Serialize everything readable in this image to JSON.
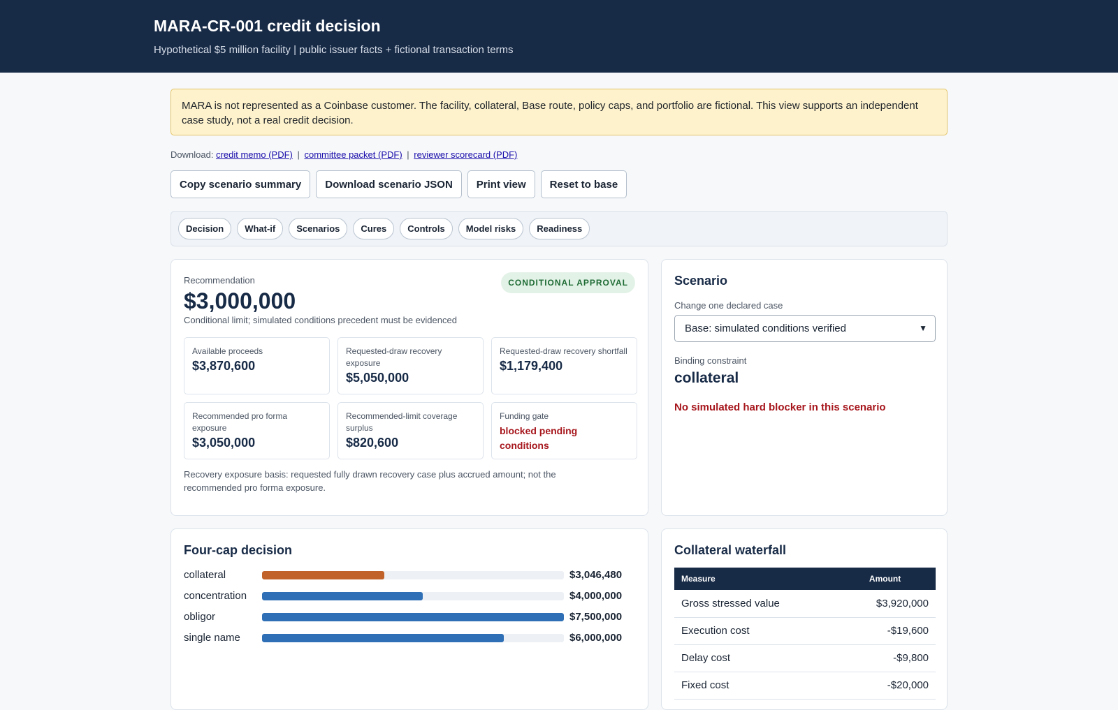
{
  "header": {
    "title": "MARA-CR-001 credit decision",
    "subtitle": "Hypothetical $5 million facility | public issuer facts + fictional transaction terms"
  },
  "notice": "MARA is not represented as a Coinbase customer. The facility, collateral, Base route, policy caps, and portfolio are fictional. This view supports an independent case study, not a real credit decision.",
  "downloads": {
    "label": "Download:",
    "links": [
      "credit memo (PDF)",
      "committee packet (PDF)",
      "reviewer scorecard (PDF)"
    ],
    "separator": "|"
  },
  "actions": [
    "Copy scenario summary",
    "Download scenario JSON",
    "Print view",
    "Reset to base"
  ],
  "tabs": [
    "Decision",
    "What-if",
    "Scenarios",
    "Cures",
    "Controls",
    "Model risks",
    "Readiness"
  ],
  "recommendation": {
    "label": "Recommendation",
    "amount": "$3,000,000",
    "subtitle": "Conditional limit; simulated conditions precedent must be evidenced",
    "badge": "CONDITIONAL APPROVAL",
    "metrics": [
      {
        "label": "Available proceeds",
        "value": "$3,870,600"
      },
      {
        "label": "Requested-draw recovery exposure",
        "value": "$5,050,000"
      },
      {
        "label": "Requested-draw recovery shortfall",
        "value": "$1,179,400"
      },
      {
        "label": "Recommended pro forma exposure",
        "value": "$3,050,000"
      },
      {
        "label": "Recommended-limit coverage surplus",
        "value": "$820,600"
      },
      {
        "label": "Funding gate",
        "value": "blocked pending conditions"
      }
    ],
    "note": "Recovery exposure basis: requested fully drawn recovery case plus accrued amount; not the recommended pro forma exposure."
  },
  "scenario": {
    "title": "Scenario",
    "select_label": "Change one declared case",
    "selected": "Base: simulated conditions verified",
    "binding_label": "Binding constraint",
    "binding_value": "collateral",
    "blocker": "No simulated hard blocker in this scenario"
  },
  "four_cap": {
    "title": "Four-cap decision",
    "max_value": 7500000,
    "caps": [
      {
        "name": "collateral",
        "value": 3046480,
        "label": "$3,046,480",
        "color": "#c0622a"
      },
      {
        "name": "concentration",
        "value": 4000000,
        "label": "$4,000,000",
        "color": "#2f6fb5"
      },
      {
        "name": "obligor",
        "value": 7500000,
        "label": "$7,500,000",
        "color": "#2f6fb5"
      },
      {
        "name": "single name",
        "value": 6000000,
        "label": "$6,000,000",
        "color": "#2f6fb5"
      }
    ]
  },
  "waterfall": {
    "title": "Collateral waterfall",
    "columns": [
      "Measure",
      "Amount"
    ],
    "rows": [
      {
        "measure": "Gross stressed value",
        "amount": "$3,920,000"
      },
      {
        "measure": "Execution cost",
        "amount": "-$19,600"
      },
      {
        "measure": "Delay cost",
        "amount": "-$9,800"
      },
      {
        "measure": "Fixed cost",
        "amount": "-$20,000"
      }
    ]
  }
}
